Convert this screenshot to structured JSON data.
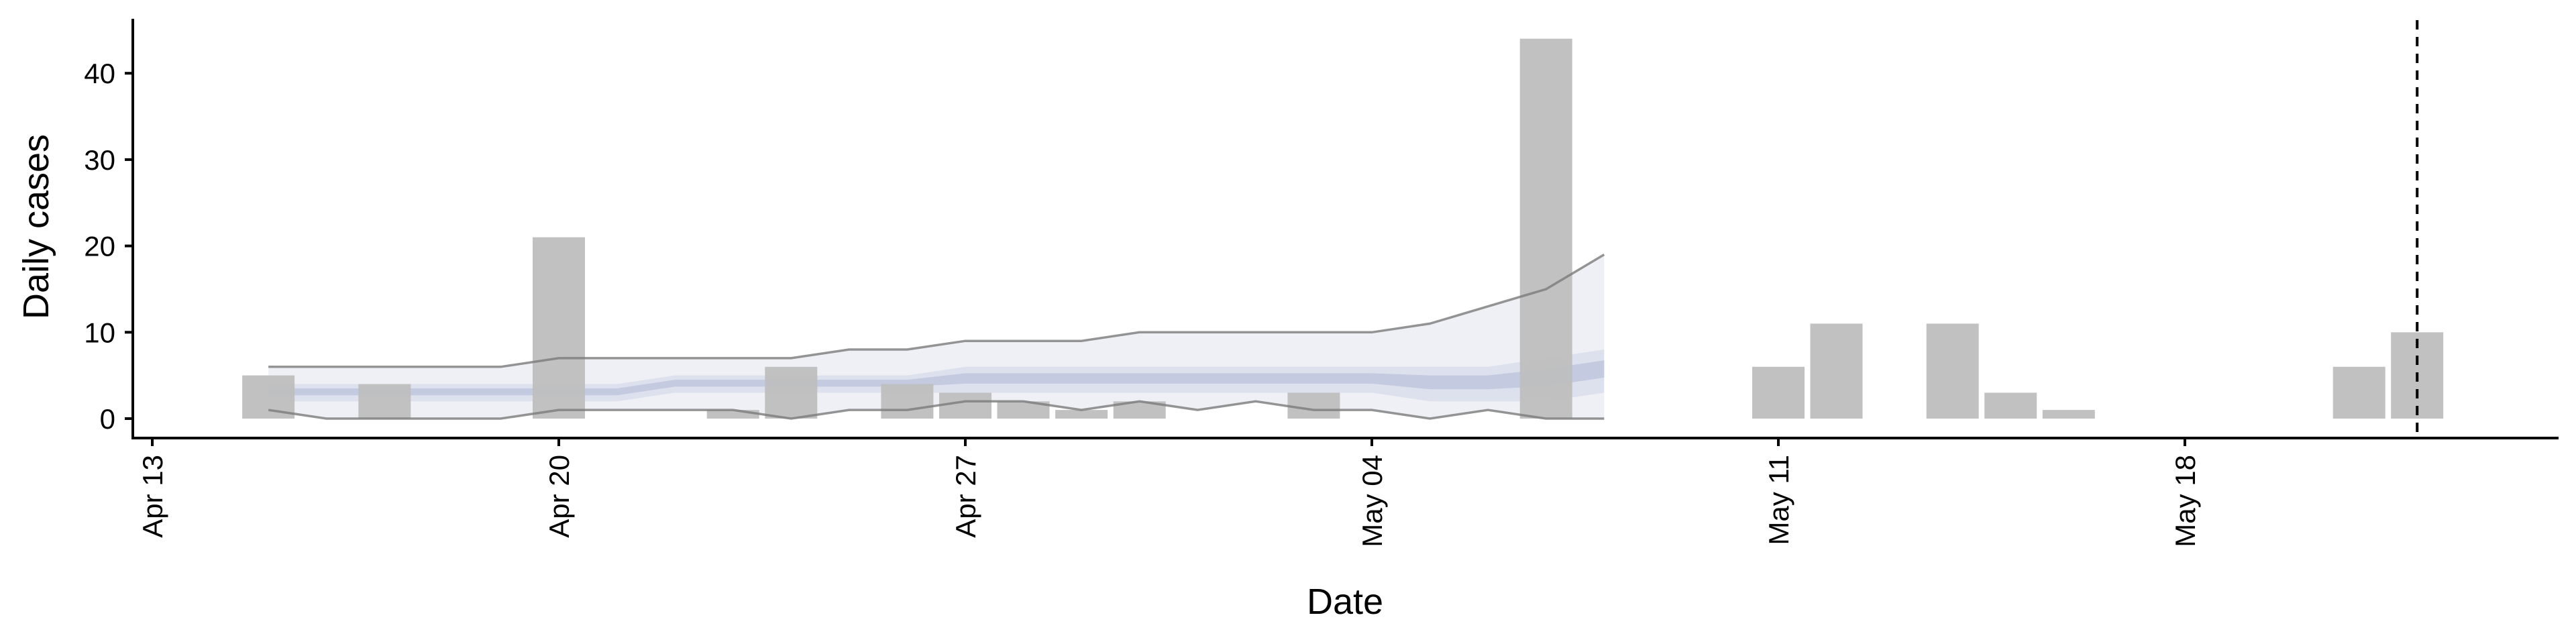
{
  "chart_data": {
    "type": "bar",
    "xlabel": "Date",
    "ylabel": "Daily cases",
    "x_ticks": [
      "Apr 13",
      "Apr 20",
      "Apr 27",
      "May 04",
      "May 11",
      "May 18"
    ],
    "y_ticks": [
      "0",
      "10",
      "20",
      "30",
      "40"
    ],
    "ylim": [
      -2.2,
      46.5
    ],
    "xlim": [
      "2020-04-13",
      "2020-05-25"
    ],
    "grid": false,
    "colors": {
      "bars": "#bebebe",
      "band_outer": "#eef0f6",
      "band_mid": "#dde1ed",
      "band_inner": "#c4cadf",
      "lines": "#7a7a7a",
      "vline": "#000000"
    },
    "observed": [
      {
        "date": "2020-04-15",
        "value": 5
      },
      {
        "date": "2020-04-17",
        "value": 4
      },
      {
        "date": "2020-04-20",
        "value": 21
      },
      {
        "date": "2020-04-23",
        "value": 1
      },
      {
        "date": "2020-04-24",
        "value": 6
      },
      {
        "date": "2020-04-26",
        "value": 4
      },
      {
        "date": "2020-04-27",
        "value": 3
      },
      {
        "date": "2020-04-28",
        "value": 2
      },
      {
        "date": "2020-04-29",
        "value": 1
      },
      {
        "date": "2020-04-30",
        "value": 2
      },
      {
        "date": "2020-05-03",
        "value": 3
      },
      {
        "date": "2020-05-07",
        "value": 44
      },
      {
        "date": "2020-05-11",
        "value": 6
      },
      {
        "date": "2020-05-12",
        "value": 11
      },
      {
        "date": "2020-05-14",
        "value": 11
      },
      {
        "date": "2020-05-15",
        "value": 3
      },
      {
        "date": "2020-05-16",
        "value": 1
      },
      {
        "date": "2020-05-21",
        "value": 6
      },
      {
        "date": "2020-05-22",
        "value": 10
      }
    ],
    "vline_date": "2020-05-22",
    "nowcast_dates": [
      "2020-04-15",
      "2020-04-16",
      "2020-04-17",
      "2020-04-18",
      "2020-04-19",
      "2020-04-20",
      "2020-04-21",
      "2020-04-22",
      "2020-04-23",
      "2020-04-24",
      "2020-04-25",
      "2020-04-26",
      "2020-04-27",
      "2020-04-28",
      "2020-04-29",
      "2020-04-30",
      "2020-05-01",
      "2020-05-02",
      "2020-05-03",
      "2020-05-04",
      "2020-05-05",
      "2020-05-06",
      "2020-05-07",
      "2020-05-08"
    ],
    "nowcast": {
      "upper_90": [
        6,
        6,
        6,
        6,
        6,
        7,
        7,
        7,
        7,
        7,
        8,
        8,
        9,
        9,
        9,
        10,
        10,
        10,
        10,
        10,
        11,
        13,
        15,
        19
      ],
      "upper_50": [
        4,
        4,
        4,
        4,
        4,
        4,
        4,
        5,
        5,
        5,
        5,
        5,
        6,
        6,
        6,
        6,
        6,
        6,
        6,
        6,
        6,
        6,
        7,
        8
      ],
      "lower_50": [
        2,
        2,
        2,
        2,
        2,
        2,
        2,
        3,
        3,
        3,
        3,
        3,
        3,
        3,
        3,
        3,
        3,
        3,
        3,
        3,
        2,
        2,
        2,
        3
      ],
      "lower_90": [
        1,
        0,
        0,
        0,
        0,
        1,
        1,
        1,
        1,
        0,
        1,
        1,
        2,
        2,
        1,
        2,
        1,
        2,
        1,
        1,
        0,
        1,
        0,
        0
      ]
    }
  }
}
